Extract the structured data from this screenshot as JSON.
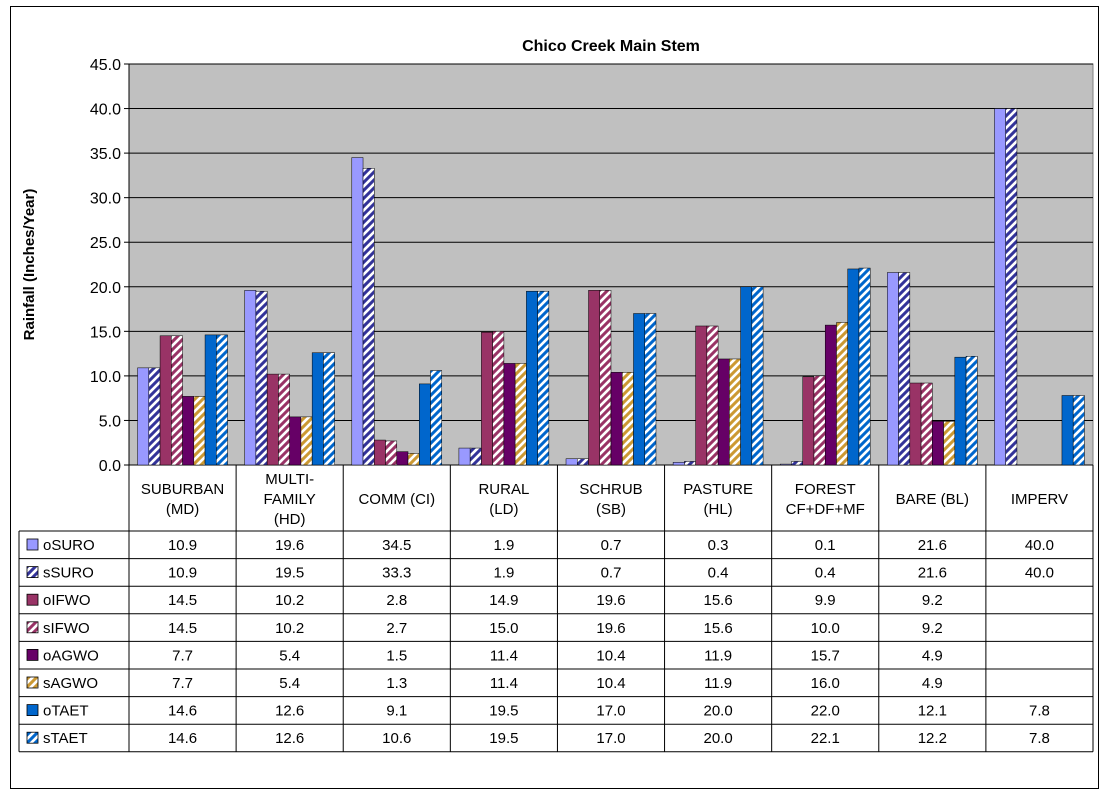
{
  "chart_data": {
    "type": "bar",
    "title": "Chico Creek Main Stem",
    "ylabel": "Rainfall (Inches/Year)",
    "ylim": [
      0,
      45
    ],
    "yticks": [
      "0.0",
      "5.0",
      "10.0",
      "15.0",
      "20.0",
      "25.0",
      "30.0",
      "35.0",
      "40.0",
      "45.0"
    ],
    "grid": true,
    "legend": "data table",
    "categories": [
      [
        "SUBURBAN",
        "(MD)"
      ],
      [
        "MULTI-",
        "FAMILY",
        "(HD)"
      ],
      [
        "COMM (CI)"
      ],
      [
        "RURAL",
        "(LD)"
      ],
      [
        "SCHRUB",
        "(SB)"
      ],
      [
        "PASTURE",
        "(HL)"
      ],
      [
        "FOREST",
        "CF+DF+MF"
      ],
      [
        "BARE (BL)"
      ],
      [
        "IMPERV"
      ]
    ],
    "series": [
      {
        "name": "oSURO",
        "color": "#9999ff",
        "pattern": "solid",
        "values": [
          10.9,
          19.6,
          34.5,
          1.9,
          0.7,
          0.3,
          0.1,
          21.6,
          40.0
        ]
      },
      {
        "name": "sSURO",
        "color": "#333399",
        "pattern": "hatch",
        "values": [
          10.9,
          19.5,
          33.3,
          1.9,
          0.7,
          0.4,
          0.4,
          21.6,
          40.0
        ]
      },
      {
        "name": "oIFWO",
        "color": "#993366",
        "pattern": "solid",
        "values": [
          14.5,
          10.2,
          2.8,
          14.9,
          19.6,
          15.6,
          9.9,
          9.2,
          null
        ]
      },
      {
        "name": "sIFWO",
        "color": "#993366",
        "pattern": "hatch",
        "values": [
          14.5,
          10.2,
          2.7,
          15.0,
          19.6,
          15.6,
          10.0,
          9.2,
          null
        ]
      },
      {
        "name": "oAGWO",
        "color": "#660066",
        "pattern": "solid",
        "values": [
          7.7,
          5.4,
          1.5,
          11.4,
          10.4,
          11.9,
          15.7,
          4.9,
          null
        ]
      },
      {
        "name": "sAGWO",
        "color": "#cc9933",
        "pattern": "hatch",
        "values": [
          7.7,
          5.4,
          1.3,
          11.4,
          10.4,
          11.9,
          16.0,
          4.9,
          null
        ]
      },
      {
        "name": "oTAET",
        "color": "#0066cc",
        "pattern": "solid",
        "values": [
          14.6,
          12.6,
          9.1,
          19.5,
          17.0,
          20.0,
          22.0,
          12.1,
          7.8
        ]
      },
      {
        "name": "sTAET",
        "color": "#0066cc",
        "pattern": "hatch",
        "values": [
          14.6,
          12.6,
          10.6,
          19.5,
          17.0,
          20.0,
          22.1,
          12.2,
          7.8
        ]
      }
    ]
  }
}
